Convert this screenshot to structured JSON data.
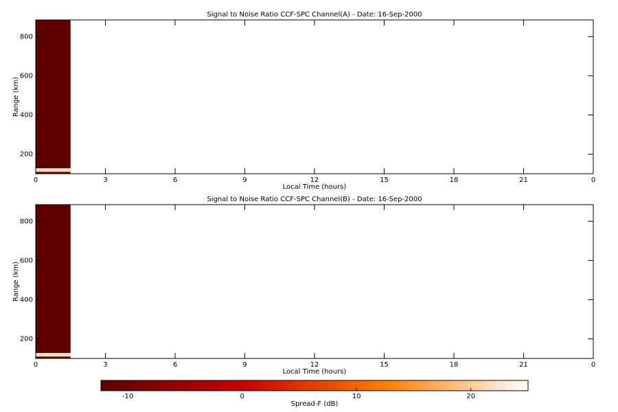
{
  "chart_data": [
    {
      "type": "heatmap",
      "title": "Signal to Noise Ratio CCF-SPC Channel(A) - Date: 16-Sep-2000",
      "x_label": "Local Time (hours)",
      "y_label": "Range (km)",
      "xlim": [
        0,
        24
      ],
      "xticks": [
        0,
        3,
        6,
        9,
        12,
        15,
        18,
        {
          "value": 21,
          "label": "21"
        },
        {
          "value": 24,
          "label": "0"
        }
      ],
      "ylim": [
        100,
        885
      ],
      "yticks": [
        200,
        400,
        600,
        800
      ],
      "x_edges": [
        0,
        1.5
      ],
      "y_edges": [
        100,
        110,
        128,
        885
      ],
      "values": [
        [
          -11
        ],
        [
          22
        ],
        [
          -12
        ]
      ]
    },
    {
      "type": "heatmap",
      "title": "Signal to Noise Ratio CCF-SPC Channel(B) - Date: 16-Sep-2000",
      "x_label": "Local Time (hours)",
      "y_label": "Range (km)",
      "xlim": [
        0,
        24
      ],
      "xticks": [
        0,
        3,
        6,
        9,
        12,
        15,
        18,
        {
          "value": 21,
          "label": "21"
        },
        {
          "value": 24,
          "label": "0"
        }
      ],
      "ylim": [
        100,
        885
      ],
      "yticks": [
        200,
        400,
        600,
        800
      ],
      "x_edges": [
        0,
        1.5
      ],
      "y_edges": [
        100,
        110,
        128,
        885
      ],
      "values": [
        [
          -11
        ],
        [
          22
        ],
        [
          -12
        ]
      ]
    }
  ],
  "colorbar": {
    "label": "Spread-F (dB)",
    "clim": [
      -12.35,
      25
    ],
    "ticks": [
      -10,
      0,
      10,
      20
    ],
    "colormap": [
      "#5a0000",
      "#c80000",
      "#ff8000",
      "#ffffff"
    ]
  }
}
